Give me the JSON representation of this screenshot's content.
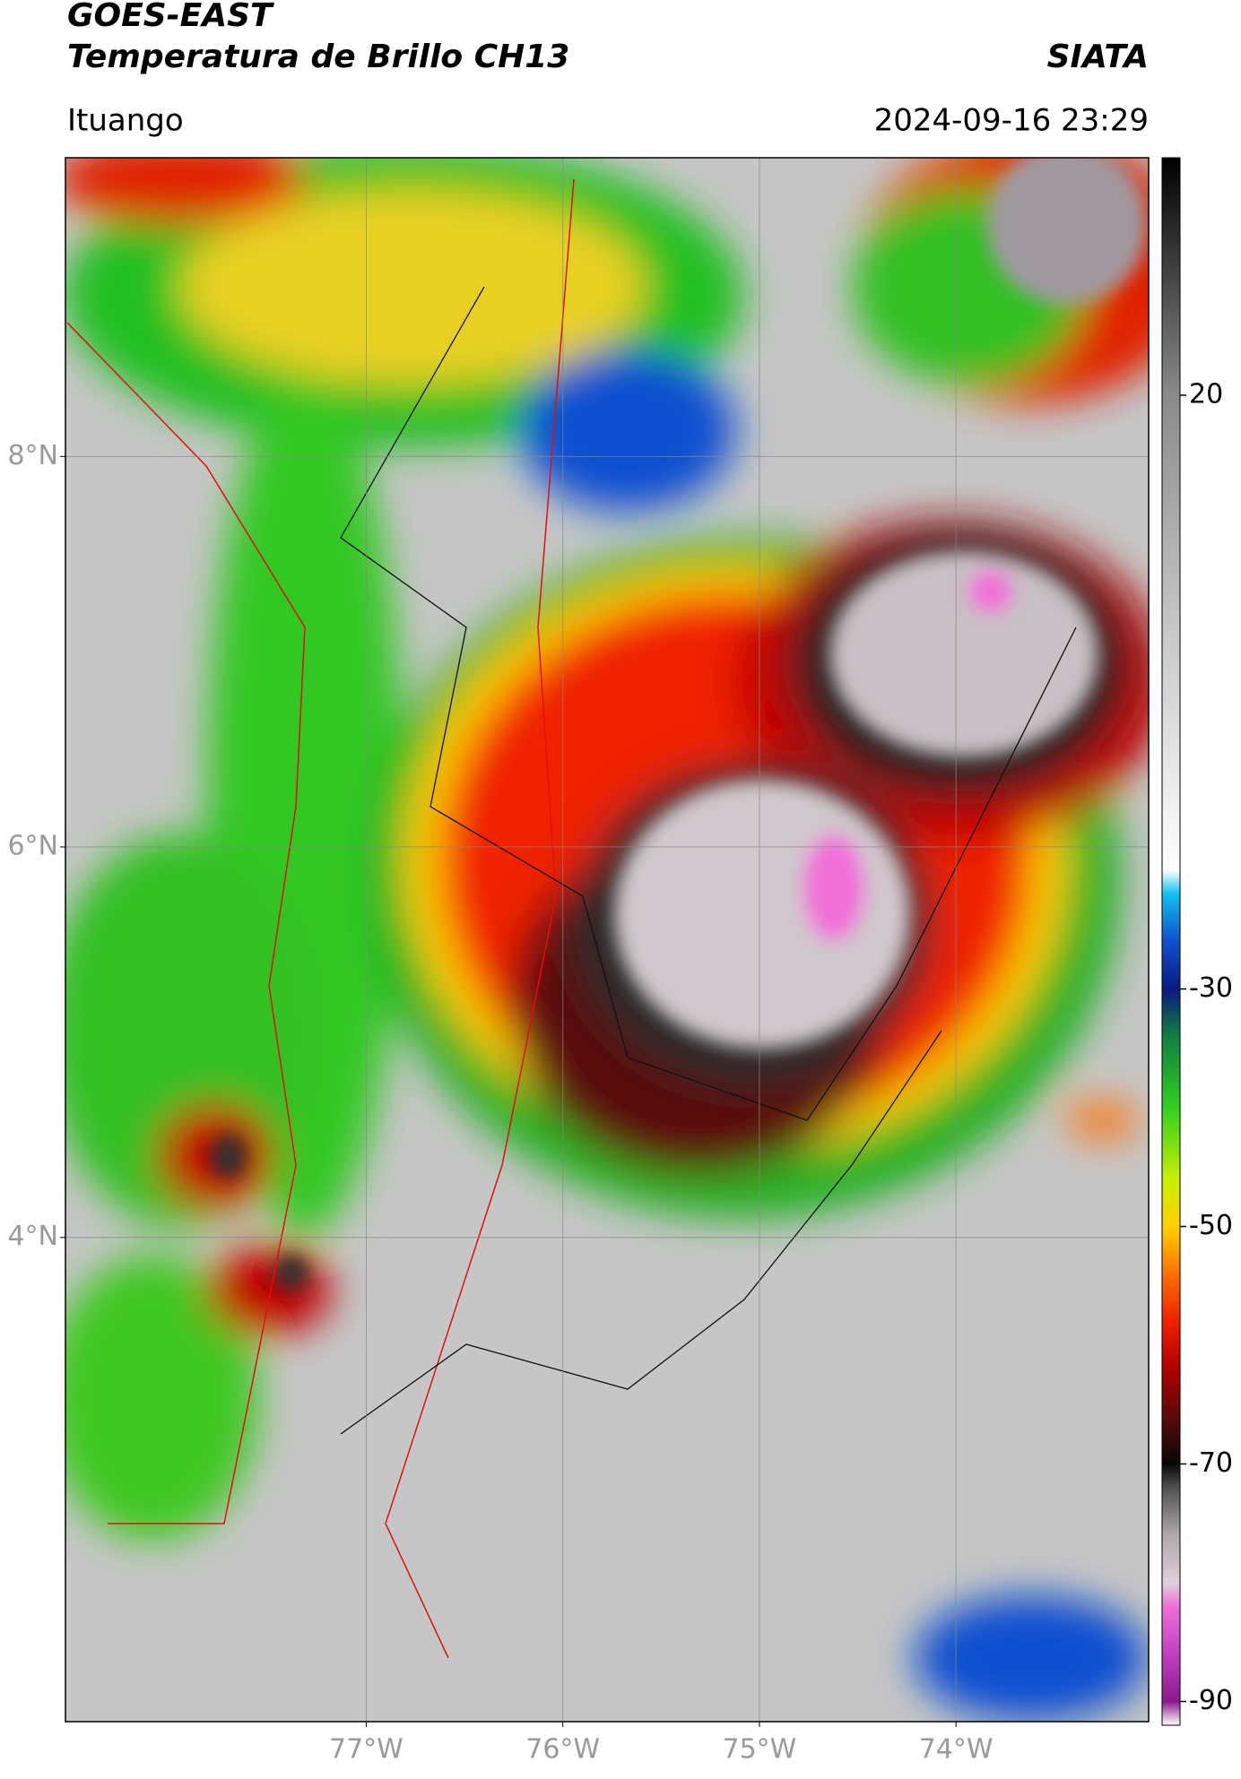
{
  "map": {
    "header": {
      "title": "GOES-EAST",
      "subtitle": "Temperatura de Brillo CH13",
      "source": "SIATA",
      "location": "Ituango",
      "timestamp": "2024-09-16 23:29"
    },
    "latlim": [
      1.52,
      9.53
    ],
    "lonlim": [
      -78.53,
      -73.02
    ],
    "latticks": [
      {
        "value": 8,
        "label": "8°N"
      },
      {
        "value": 6,
        "label": "6°N"
      },
      {
        "value": 4,
        "label": "4°N"
      }
    ],
    "lonticks": [
      {
        "value": -77,
        "label": "77°W"
      },
      {
        "value": -76,
        "label": "76°W"
      },
      {
        "value": -75,
        "label": "75°W"
      },
      {
        "value": -74,
        "label": "74°W"
      }
    ],
    "grid": true,
    "colorbar": {
      "lim": [
        -92,
        40
      ],
      "ticks": [
        20,
        -30,
        -50,
        -70,
        -90
      ],
      "colormap": [
        {
          "value": -92,
          "color": "#ffffff"
        },
        {
          "value": -90,
          "color": "#8a1a8a"
        },
        {
          "value": -86,
          "color": "#c040c0"
        },
        {
          "value": -82,
          "color": "#f070d8"
        },
        {
          "value": -80,
          "color": "#e0d0dc"
        },
        {
          "value": -76,
          "color": "#b0a8ac"
        },
        {
          "value": -72,
          "color": "#505050"
        },
        {
          "value": -70,
          "color": "#080808"
        },
        {
          "value": -66,
          "color": "#5a0a0a"
        },
        {
          "value": -62,
          "color": "#b00000"
        },
        {
          "value": -58,
          "color": "#f02000"
        },
        {
          "value": -54,
          "color": "#ff7000"
        },
        {
          "value": -50,
          "color": "#ffd000"
        },
        {
          "value": -46,
          "color": "#c8f000"
        },
        {
          "value": -40,
          "color": "#30d020"
        },
        {
          "value": -34,
          "color": "#108040"
        },
        {
          "value": -30,
          "color": "#0a1a80"
        },
        {
          "value": -26,
          "color": "#1050d0"
        },
        {
          "value": -22,
          "color": "#10c0f0"
        },
        {
          "value": -20,
          "color": "#ffffff"
        },
        {
          "value": 0,
          "color": "#c8c8c8"
        },
        {
          "value": 20,
          "color": "#8a8a8a"
        },
        {
          "value": 40,
          "color": "#000000"
        }
      ]
    }
  }
}
